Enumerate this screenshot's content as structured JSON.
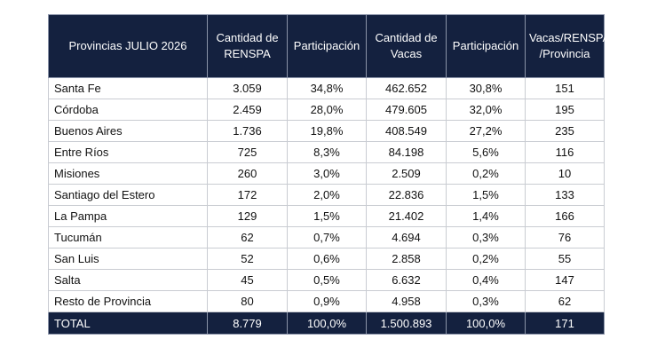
{
  "table": {
    "headers": [
      "Provincias JULIO 2026",
      "Cantidad de RENSPA",
      "Participación",
      "Cantidad de Vacas",
      "Participación",
      "Vacas/RENSPA /Provincia"
    ],
    "rows": [
      [
        "Santa Fe",
        "3.059",
        "34,8%",
        "462.652",
        "30,8%",
        "151"
      ],
      [
        "Córdoba",
        "2.459",
        "28,0%",
        "479.605",
        "32,0%",
        "195"
      ],
      [
        "Buenos Aires",
        "1.736",
        "19,8%",
        "408.549",
        "27,2%",
        "235"
      ],
      [
        "Entre Ríos",
        "725",
        "8,3%",
        "84.198",
        "5,6%",
        "116"
      ],
      [
        "Misiones",
        "260",
        "3,0%",
        "2.509",
        "0,2%",
        "10"
      ],
      [
        "Santiago del Estero",
        "172",
        "2,0%",
        "22.836",
        "1,5%",
        "133"
      ],
      [
        "La Pampa",
        "129",
        "1,5%",
        "21.402",
        "1,4%",
        "166"
      ],
      [
        "Tucumán",
        "62",
        "0,7%",
        "4.694",
        "0,3%",
        "76"
      ],
      [
        "San Luis",
        "52",
        "0,6%",
        "2.858",
        "0,2%",
        "55"
      ],
      [
        "Salta",
        "45",
        "0,5%",
        "6.632",
        "0,4%",
        "147"
      ],
      [
        "Resto de Provincia",
        "80",
        "0,9%",
        "4.958",
        "0,3%",
        "62"
      ]
    ],
    "total": [
      "TOTAL",
      "8.779",
      "100,0%",
      "1.500.893",
      "100,0%",
      "171"
    ]
  },
  "colors": {
    "header_bg": "#14213f",
    "header_text": "#ffffff",
    "grid": "#c9ccd2"
  }
}
